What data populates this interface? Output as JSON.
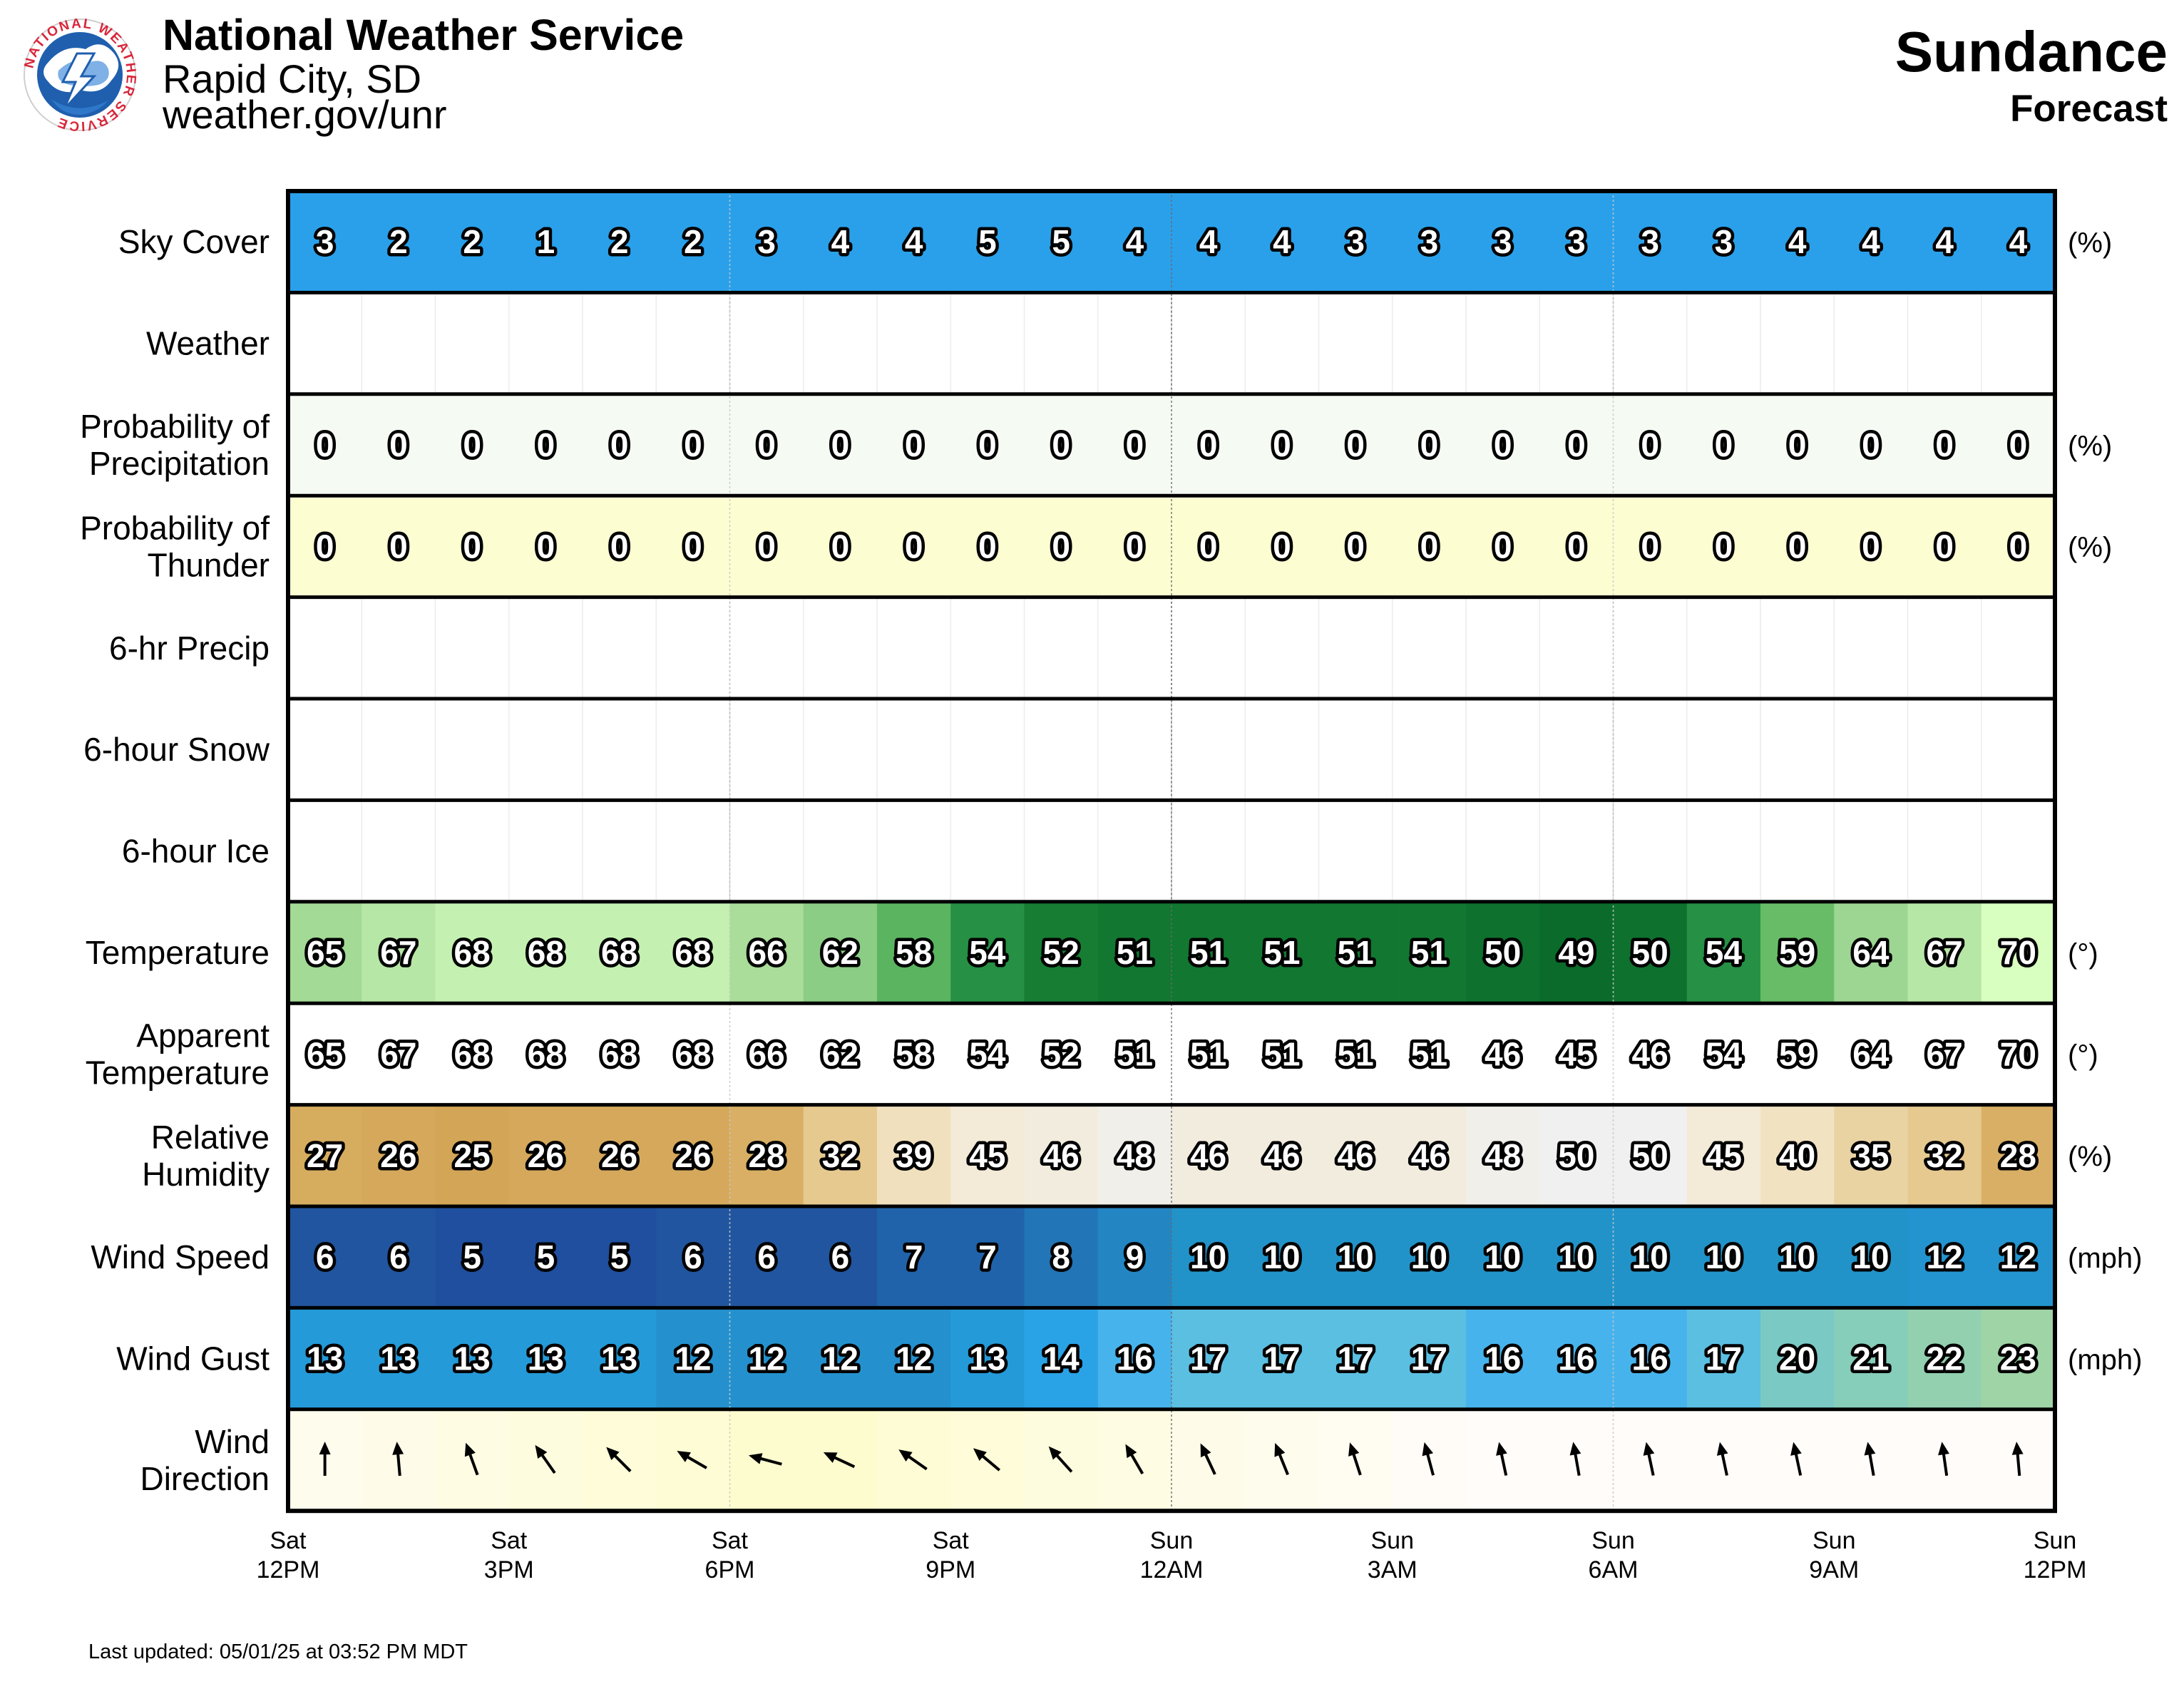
{
  "header": {
    "org": "National Weather Service",
    "office": "Rapid City, SD",
    "url": "weather.gov/unr",
    "location": "Sundance",
    "subtitle": "Forecast",
    "logo_text": "NATIONAL WEATHER SERVICE"
  },
  "footer": {
    "updated": "Last updated: 05/01/25 at 03:52 PM MDT"
  },
  "chart_data": {
    "type": "table",
    "time_labels": [
      {
        "day": "Sat",
        "time": "12PM"
      },
      {
        "day": "Sat",
        "time": "3PM"
      },
      {
        "day": "Sat",
        "time": "6PM"
      },
      {
        "day": "Sat",
        "time": "9PM"
      },
      {
        "day": "Sun",
        "time": "12AM"
      },
      {
        "day": "Sun",
        "time": "3AM"
      },
      {
        "day": "Sun",
        "time": "6AM"
      },
      {
        "day": "Sun",
        "time": "9AM"
      },
      {
        "day": "Sun",
        "time": "12PM"
      }
    ],
    "rows": [
      {
        "key": "sky-cover",
        "label": [
          "Sky Cover"
        ],
        "unit": "(%)",
        "style": "sky",
        "values": [
          3,
          2,
          2,
          1,
          2,
          2,
          3,
          4,
          4,
          5,
          5,
          4,
          4,
          4,
          3,
          3,
          3,
          3,
          3,
          3,
          4,
          4,
          4,
          4
        ]
      },
      {
        "key": "weather",
        "label": [
          "Weather"
        ],
        "unit": "",
        "style": "empty",
        "values": []
      },
      {
        "key": "pop",
        "label": [
          "Probability of",
          "Precipitation"
        ],
        "unit": "(%)",
        "style": "pop",
        "values": [
          0,
          0,
          0,
          0,
          0,
          0,
          0,
          0,
          0,
          0,
          0,
          0,
          0,
          0,
          0,
          0,
          0,
          0,
          0,
          0,
          0,
          0,
          0,
          0
        ]
      },
      {
        "key": "thunder",
        "label": [
          "Probability of",
          "Thunder"
        ],
        "unit": "(%)",
        "style": "thunder",
        "values": [
          0,
          0,
          0,
          0,
          0,
          0,
          0,
          0,
          0,
          0,
          0,
          0,
          0,
          0,
          0,
          0,
          0,
          0,
          0,
          0,
          0,
          0,
          0,
          0
        ]
      },
      {
        "key": "precip-6hr",
        "label": [
          "6-hr Precip"
        ],
        "unit": "",
        "style": "empty",
        "values": []
      },
      {
        "key": "snow-6hr",
        "label": [
          "6-hour Snow"
        ],
        "unit": "",
        "style": "empty",
        "values": []
      },
      {
        "key": "ice-6hr",
        "label": [
          "6-hour Ice"
        ],
        "unit": "",
        "style": "empty",
        "values": []
      },
      {
        "key": "temperature",
        "label": [
          "Temperature"
        ],
        "unit": "(°)",
        "style": "temp",
        "values": [
          65,
          67,
          68,
          68,
          68,
          68,
          66,
          62,
          58,
          54,
          52,
          51,
          51,
          51,
          51,
          51,
          50,
          49,
          50,
          54,
          59,
          64,
          67,
          70
        ]
      },
      {
        "key": "apparent-temperature",
        "label": [
          "Apparent",
          "Temperature"
        ],
        "unit": "(°)",
        "style": "apparent",
        "values": [
          65,
          67,
          68,
          68,
          68,
          68,
          66,
          62,
          58,
          54,
          52,
          51,
          51,
          51,
          51,
          51,
          46,
          45,
          46,
          54,
          59,
          64,
          67,
          70
        ]
      },
      {
        "key": "relative-humidity",
        "label": [
          "Relative",
          "Humidity"
        ],
        "unit": "(%)",
        "style": "rh",
        "values": [
          27,
          26,
          25,
          26,
          26,
          26,
          28,
          32,
          39,
          45,
          46,
          48,
          46,
          46,
          46,
          46,
          48,
          50,
          50,
          45,
          40,
          35,
          32,
          28
        ]
      },
      {
        "key": "wind-speed",
        "label": [
          "Wind Speed"
        ],
        "unit": "(mph)",
        "style": "wspd",
        "values": [
          6,
          6,
          5,
          5,
          5,
          6,
          6,
          6,
          7,
          7,
          8,
          9,
          10,
          10,
          10,
          10,
          10,
          10,
          10,
          10,
          10,
          10,
          12,
          12
        ]
      },
      {
        "key": "wind-gust",
        "label": [
          "Wind Gust"
        ],
        "unit": "(mph)",
        "style": "wgust",
        "values": [
          13,
          13,
          13,
          13,
          13,
          12,
          12,
          12,
          12,
          13,
          14,
          16,
          17,
          17,
          17,
          17,
          16,
          16,
          16,
          17,
          20,
          21,
          22,
          23
        ]
      },
      {
        "key": "wind-direction",
        "label": [
          "Wind",
          "Direction"
        ],
        "unit": "",
        "style": "wdir",
        "values": [
          180,
          175,
          160,
          145,
          135,
          120,
          105,
          115,
          125,
          130,
          138,
          150,
          155,
          158,
          162,
          165,
          168,
          170,
          168,
          168,
          168,
          170,
          172,
          175
        ]
      }
    ]
  }
}
